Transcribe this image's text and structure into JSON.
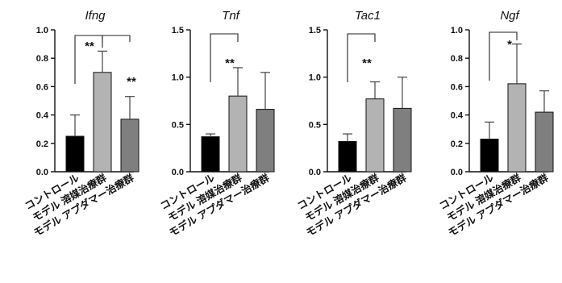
{
  "chart_data": [
    {
      "type": "bar",
      "title": "Ifng",
      "categories": [
        "コントロール",
        "モデル 溶媒治療群",
        "モデル アプダマー治療群"
      ],
      "values": [
        0.25,
        0.7,
        0.37
      ],
      "errors": [
        0.15,
        0.15,
        0.16
      ],
      "ylim": [
        0,
        1.0
      ],
      "yticks": [
        "0.0",
        "0.2",
        "0.4",
        "0.6",
        "0.8",
        "1.0"
      ],
      "tick_values": [
        0,
        0.2,
        0.4,
        0.6,
        0.8,
        1.0
      ],
      "significance": [
        {
          "from": 0,
          "to": 1,
          "label": "**"
        },
        {
          "from": 1,
          "to": 2,
          "label": "**"
        }
      ]
    },
    {
      "type": "bar",
      "title": "Tnf",
      "categories": [
        "コントロール",
        "モデル 溶媒治療群",
        "モデル アプダマー治療群"
      ],
      "values": [
        0.37,
        0.8,
        0.66
      ],
      "errors": [
        0.03,
        0.3,
        0.39
      ],
      "ylim": [
        0,
        1.5
      ],
      "yticks": [
        "0.0",
        "0.5",
        "1.0",
        "1.5"
      ],
      "tick_values": [
        0,
        0.5,
        1.0,
        1.5
      ],
      "significance": [
        {
          "from": 0,
          "to": 1,
          "label": "**"
        }
      ]
    },
    {
      "type": "bar",
      "title": "Tac1",
      "categories": [
        "コントロール",
        "モデル 溶媒治療群",
        "モデル アプダマー治療群"
      ],
      "values": [
        0.32,
        0.77,
        0.67
      ],
      "errors": [
        0.08,
        0.18,
        0.33
      ],
      "ylim": [
        0,
        1.5
      ],
      "yticks": [
        "0.0",
        "0.5",
        "1.0",
        "1.5"
      ],
      "tick_values": [
        0,
        0.5,
        1.0,
        1.5
      ],
      "significance": [
        {
          "from": 0,
          "to": 1,
          "label": "**"
        }
      ]
    },
    {
      "type": "bar",
      "title": "Ngf",
      "categories": [
        "コントロール",
        "モデル 溶媒治療群",
        "モデル アプダマー治療群"
      ],
      "values": [
        0.23,
        0.62,
        0.42
      ],
      "errors": [
        0.12,
        0.28,
        0.15
      ],
      "ylim": [
        0,
        1.0
      ],
      "yticks": [
        "0.0",
        "0.2",
        "0.4",
        "0.6",
        "0.8",
        "1.0"
      ],
      "tick_values": [
        0,
        0.2,
        0.4,
        0.6,
        0.8,
        1.0
      ],
      "significance": [
        {
          "from": 0,
          "to": 1,
          "label": "*"
        }
      ]
    }
  ],
  "bar_colors": [
    "#000000",
    "#b3b3b3",
    "#7f7f7f"
  ]
}
